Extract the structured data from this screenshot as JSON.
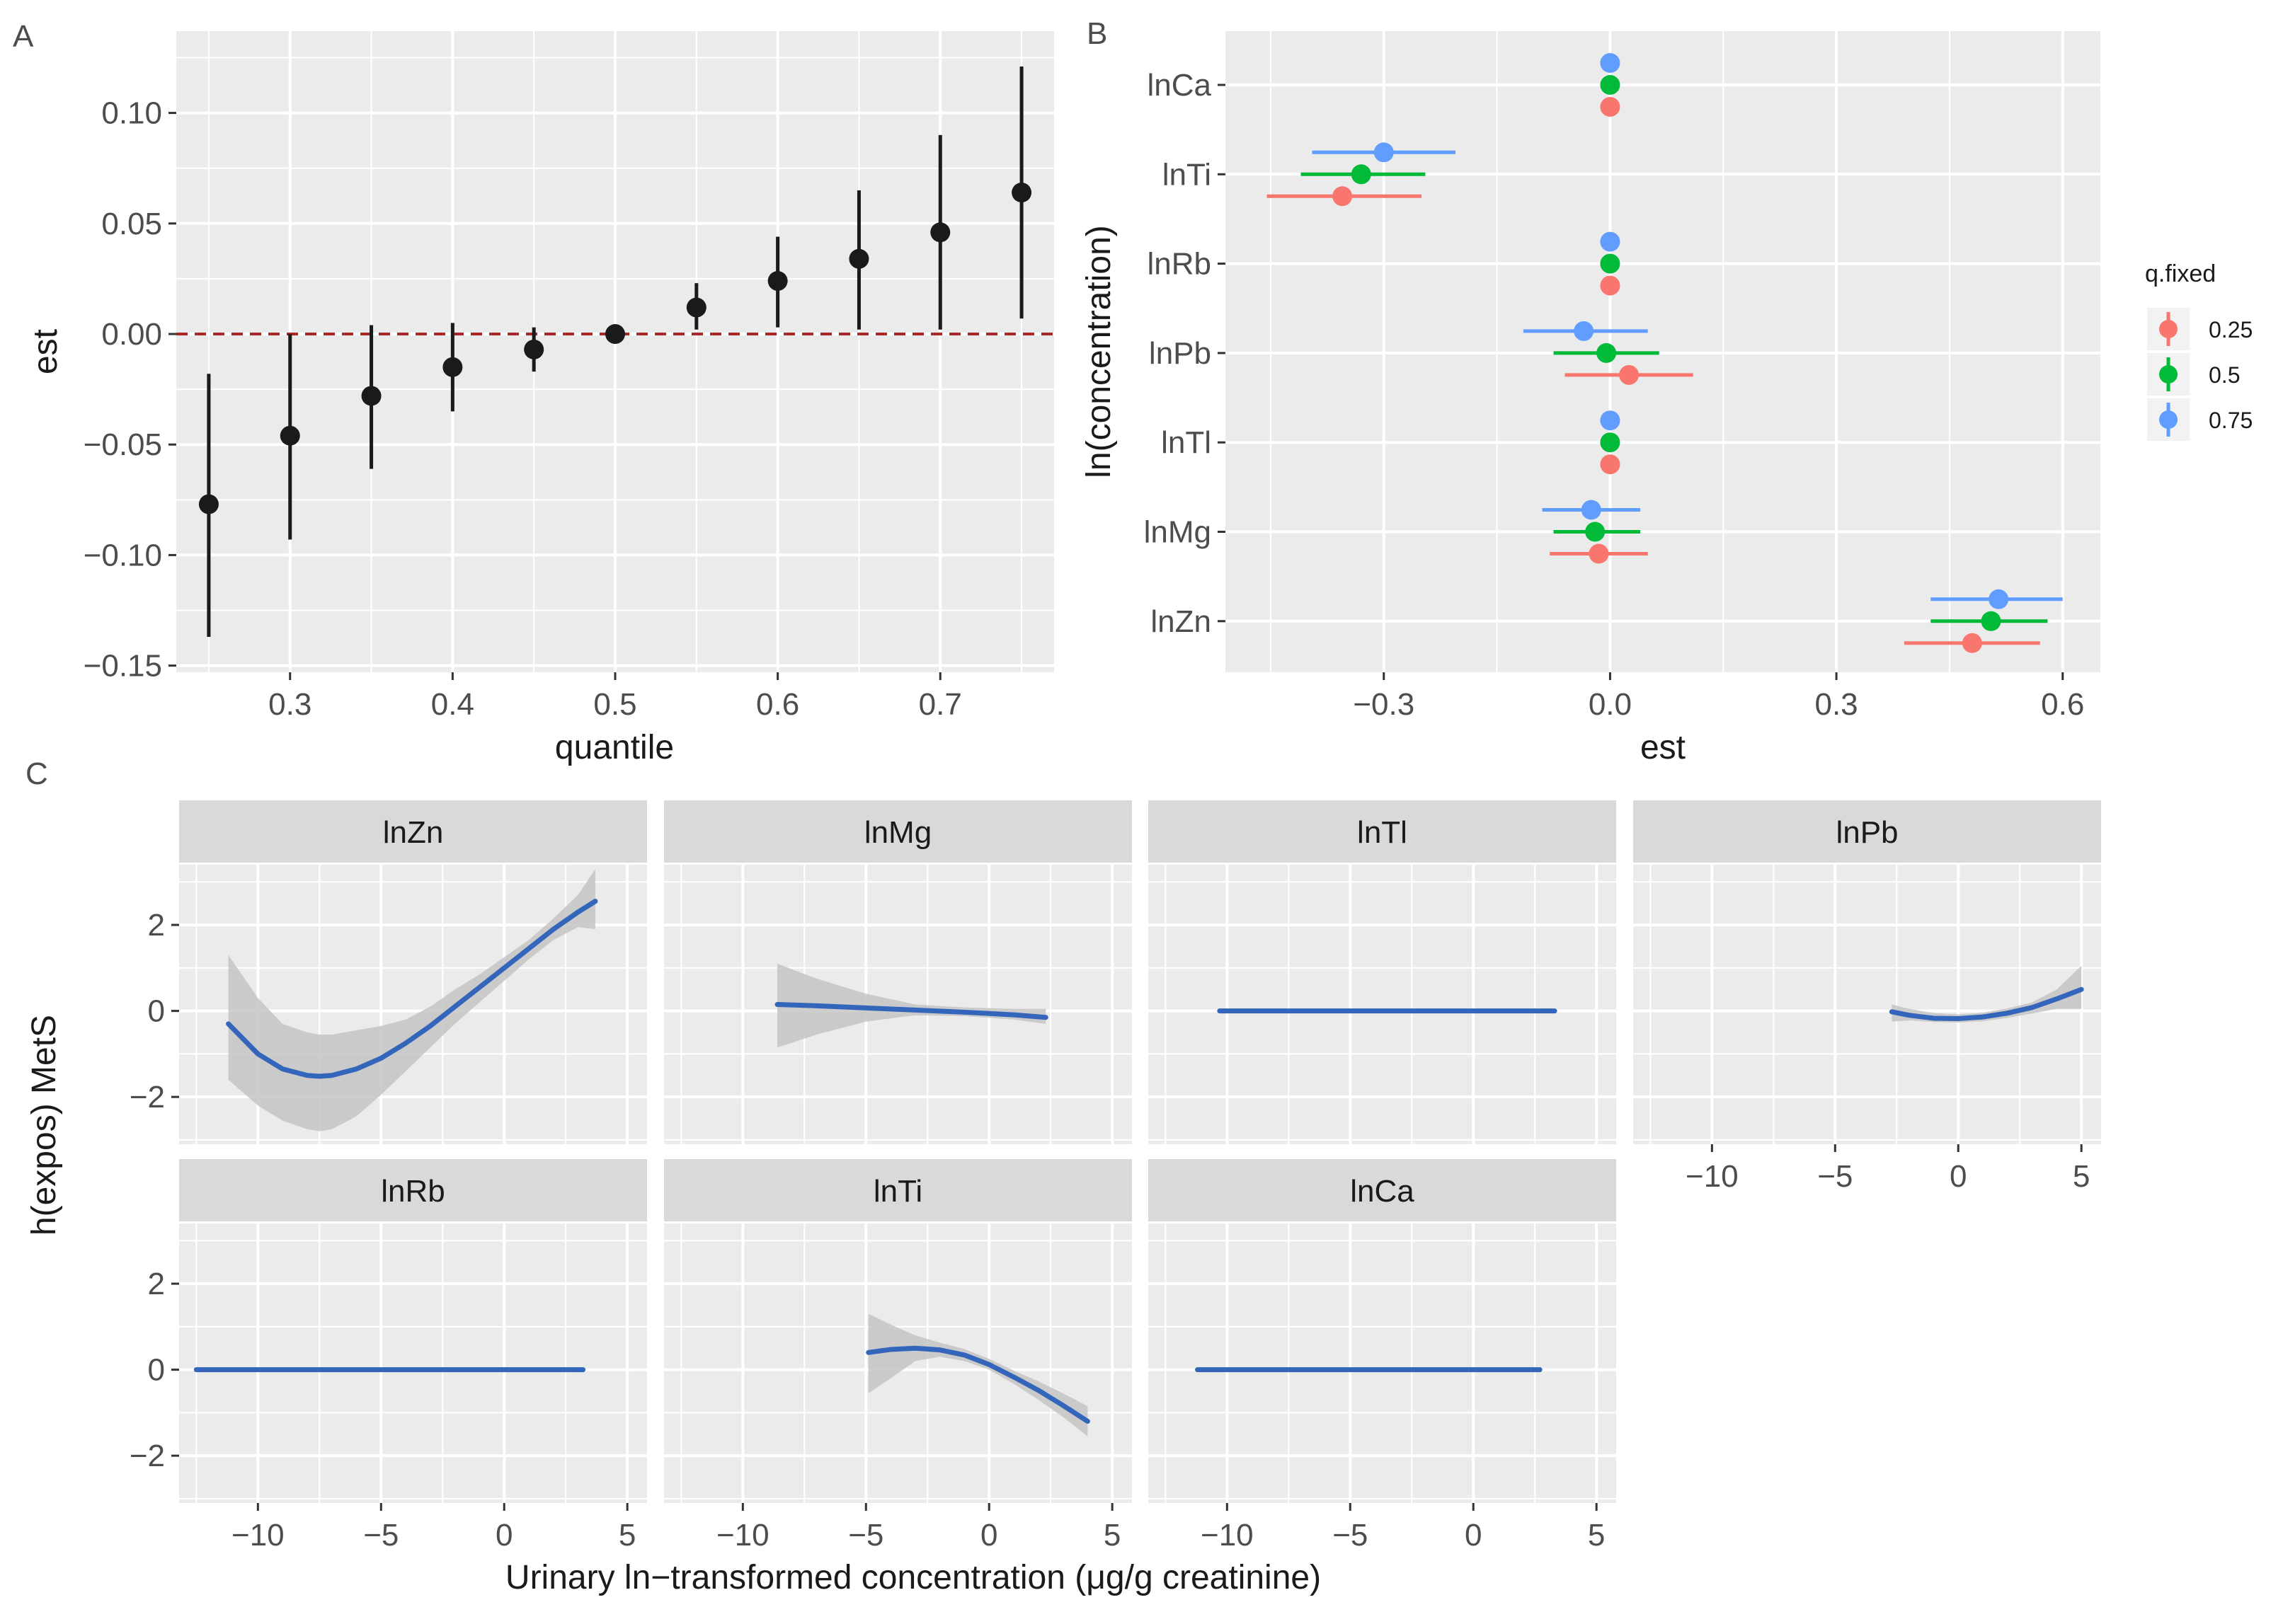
{
  "panel_labels": {
    "a": "A",
    "b": "B",
    "c": "C"
  },
  "chart_data": [
    {
      "type": "scatter",
      "panel": "A",
      "xlabel": "quantile",
      "ylabel": "est",
      "xlim": [
        0.23,
        0.77
      ],
      "ylim": [
        -0.153,
        0.137
      ],
      "x_ticks": [
        0.3,
        0.4,
        0.5,
        0.6,
        0.7
      ],
      "x_tick_labels": [
        "0.3",
        "0.4",
        "0.5",
        "0.6",
        "0.7"
      ],
      "y_ticks": [
        -0.15,
        -0.1,
        -0.05,
        0.0,
        0.05,
        0.1
      ],
      "y_tick_labels": [
        "−0.15",
        "−0.10",
        "−0.05",
        "0.00",
        "0.05",
        "0.10"
      ],
      "reference_line": {
        "y": 0,
        "style": "dashed",
        "color": "#a52a2a"
      },
      "grid": true,
      "points": [
        {
          "x": 0.25,
          "est": -0.077,
          "lo": -0.137,
          "hi": -0.018
        },
        {
          "x": 0.3,
          "est": -0.046,
          "lo": -0.093,
          "hi": 0.0
        },
        {
          "x": 0.35,
          "est": -0.028,
          "lo": -0.061,
          "hi": 0.004
        },
        {
          "x": 0.4,
          "est": -0.015,
          "lo": -0.035,
          "hi": 0.005
        },
        {
          "x": 0.45,
          "est": -0.007,
          "lo": -0.017,
          "hi": 0.003
        },
        {
          "x": 0.5,
          "est": 0.0,
          "lo": 0.0,
          "hi": 0.0
        },
        {
          "x": 0.55,
          "est": 0.012,
          "lo": 0.002,
          "hi": 0.023
        },
        {
          "x": 0.6,
          "est": 0.024,
          "lo": 0.003,
          "hi": 0.044
        },
        {
          "x": 0.65,
          "est": 0.034,
          "lo": 0.002,
          "hi": 0.065
        },
        {
          "x": 0.7,
          "est": 0.046,
          "lo": 0.002,
          "hi": 0.09
        },
        {
          "x": 0.75,
          "est": 0.064,
          "lo": 0.007,
          "hi": 0.121
        }
      ],
      "colors": {
        "point": "#1a1a1a",
        "panel_bg": "#ebebeb",
        "grid": "#ffffff"
      }
    },
    {
      "type": "scatter",
      "panel": "B",
      "xlabel": "est",
      "ylabel": "ln(concentration)",
      "xlim": [
        -0.51,
        0.65
      ],
      "x_ticks": [
        -0.3,
        0.0,
        0.3,
        0.6
      ],
      "x_tick_labels": [
        "−0.3",
        "0.0",
        "0.3",
        "0.6"
      ],
      "categories": [
        "lnCa",
        "lnTi",
        "lnRb",
        "lnPb",
        "lnTl",
        "lnMg",
        "lnZn"
      ],
      "legend": {
        "title": "q.fixed",
        "position": "right",
        "entries": [
          {
            "label": "0.25",
            "color": "#f8766d"
          },
          {
            "label": "0.5",
            "color": "#00ba38"
          },
          {
            "label": "0.75",
            "color": "#619cff"
          }
        ]
      },
      "grid": true,
      "series": [
        {
          "name": "0.25",
          "color": "#f8766d",
          "values": [
            {
              "est": 0.0,
              "lo": 0.0,
              "hi": 0.0
            },
            {
              "est": -0.355,
              "lo": -0.455,
              "hi": -0.25
            },
            {
              "est": 0.0,
              "lo": 0.0,
              "hi": 0.0
            },
            {
              "est": 0.025,
              "lo": -0.06,
              "hi": 0.11
            },
            {
              "est": 0.0,
              "lo": 0.0,
              "hi": 0.0
            },
            {
              "est": -0.015,
              "lo": -0.08,
              "hi": 0.05
            },
            {
              "est": 0.48,
              "lo": 0.39,
              "hi": 0.57
            }
          ]
        },
        {
          "name": "0.5",
          "color": "#00ba38",
          "values": [
            {
              "est": 0.0,
              "lo": 0.0,
              "hi": 0.0
            },
            {
              "est": -0.33,
              "lo": -0.41,
              "hi": -0.245
            },
            {
              "est": 0.0,
              "lo": 0.0,
              "hi": 0.0
            },
            {
              "est": -0.005,
              "lo": -0.075,
              "hi": 0.065
            },
            {
              "est": 0.0,
              "lo": 0.0,
              "hi": 0.0
            },
            {
              "est": -0.02,
              "lo": -0.075,
              "hi": 0.04
            },
            {
              "est": 0.505,
              "lo": 0.425,
              "hi": 0.58
            }
          ]
        },
        {
          "name": "0.75",
          "color": "#619cff",
          "values": [
            {
              "est": 0.0,
              "lo": 0.0,
              "hi": 0.0
            },
            {
              "est": -0.3,
              "lo": -0.395,
              "hi": -0.205
            },
            {
              "est": 0.0,
              "lo": 0.0,
              "hi": 0.0
            },
            {
              "est": -0.035,
              "lo": -0.115,
              "hi": 0.05
            },
            {
              "est": 0.0,
              "lo": 0.0,
              "hi": 0.0
            },
            {
              "est": -0.025,
              "lo": -0.09,
              "hi": 0.04
            },
            {
              "est": 0.515,
              "lo": 0.425,
              "hi": 0.6
            }
          ]
        }
      ]
    },
    {
      "type": "line",
      "panel": "C",
      "xlabel": "Urinary ln−transformed concentration (μg/g creatinine)",
      "ylabel": "h(expos) MetS",
      "xlim": [
        -13.2,
        5.8
      ],
      "ylim": [
        -3.1,
        3.4
      ],
      "x_ticks": [
        -10,
        -5,
        0,
        5
      ],
      "x_tick_labels": [
        "−10",
        "−5",
        "0",
        "5"
      ],
      "y_ticks": [
        -2,
        0,
        2
      ],
      "y_tick_labels": [
        "−2",
        "0",
        "2"
      ],
      "line_color": "#3366bb",
      "band_color": "#c4c4c4",
      "grid": true,
      "facets": [
        {
          "name": "lnZn",
          "x": [
            -11.2,
            -10,
            -9,
            -8,
            -7.5,
            -7,
            -6,
            -5,
            -4,
            -3,
            -2,
            -1,
            0,
            1,
            2,
            3,
            3.7
          ],
          "y": [
            -0.3,
            -1.0,
            -1.35,
            -1.5,
            -1.52,
            -1.5,
            -1.35,
            -1.1,
            -0.75,
            -0.35,
            0.1,
            0.55,
            1.0,
            1.45,
            1.9,
            2.3,
            2.55
          ],
          "lo": [
            -1.6,
            -2.2,
            -2.55,
            -2.75,
            -2.8,
            -2.75,
            -2.45,
            -1.95,
            -1.4,
            -0.85,
            -0.3,
            0.2,
            0.7,
            1.2,
            1.65,
            1.95,
            1.9
          ],
          "hi": [
            1.3,
            0.3,
            -0.3,
            -0.5,
            -0.55,
            -0.55,
            -0.45,
            -0.35,
            -0.2,
            0.1,
            0.5,
            0.85,
            1.25,
            1.65,
            2.15,
            2.7,
            3.3
          ]
        },
        {
          "name": "lnMg",
          "x": [
            -8.6,
            -7,
            -5,
            -3,
            -1,
            1,
            2.3
          ],
          "y": [
            0.15,
            0.12,
            0.07,
            0.02,
            -0.03,
            -0.09,
            -0.15
          ],
          "lo": [
            -0.85,
            -0.55,
            -0.25,
            -0.1,
            -0.12,
            -0.2,
            -0.3
          ],
          "hi": [
            1.1,
            0.75,
            0.4,
            0.15,
            0.08,
            0.05,
            0.05
          ]
        },
        {
          "name": "lnTl",
          "x": [
            -10.3,
            -6,
            -2,
            2,
            3.3
          ],
          "y": [
            0,
            0,
            0,
            0,
            0
          ],
          "lo": [
            -0.04,
            -0.04,
            -0.04,
            -0.04,
            -0.04
          ],
          "hi": [
            0.04,
            0.04,
            0.04,
            0.04,
            0.04
          ]
        },
        {
          "name": "lnPb",
          "x": [
            -2.7,
            -2,
            -1,
            0,
            1,
            2,
            3,
            4,
            5
          ],
          "y": [
            -0.02,
            -0.1,
            -0.17,
            -0.18,
            -0.14,
            -0.05,
            0.08,
            0.28,
            0.5
          ],
          "lo": [
            -0.25,
            -0.22,
            -0.26,
            -0.27,
            -0.24,
            -0.16,
            -0.06,
            0.05,
            0.05
          ],
          "hi": [
            0.15,
            0.05,
            -0.05,
            -0.08,
            -0.04,
            0.06,
            0.2,
            0.5,
            1.05
          ]
        },
        {
          "name": "lnRb",
          "x": [
            -12.5,
            -8,
            -4,
            0,
            3.2
          ],
          "y": [
            0,
            0,
            0,
            0,
            0
          ],
          "lo": [
            -0.04,
            -0.04,
            -0.04,
            -0.04,
            -0.04
          ],
          "hi": [
            0.04,
            0.04,
            0.04,
            0.04,
            0.04
          ]
        },
        {
          "name": "lnTi",
          "x": [
            -4.9,
            -4,
            -3,
            -2,
            -1,
            0,
            1,
            2,
            3,
            4
          ],
          "y": [
            0.4,
            0.47,
            0.5,
            0.46,
            0.34,
            0.12,
            -0.17,
            -0.48,
            -0.83,
            -1.2
          ],
          "lo": [
            -0.55,
            -0.2,
            0.2,
            0.3,
            0.2,
            0.0,
            -0.33,
            -0.7,
            -1.1,
            -1.55
          ],
          "hi": [
            1.3,
            1.05,
            0.8,
            0.63,
            0.48,
            0.25,
            -0.02,
            -0.27,
            -0.55,
            -0.85
          ]
        },
        {
          "name": "lnCa",
          "x": [
            -11.2,
            -7,
            -3,
            0,
            2.7
          ],
          "y": [
            0,
            0,
            0,
            0,
            0
          ],
          "lo": [
            -0.04,
            -0.04,
            -0.04,
            -0.04,
            -0.04
          ],
          "hi": [
            0.04,
            0.04,
            0.04,
            0.04,
            0.04
          ]
        }
      ]
    }
  ]
}
